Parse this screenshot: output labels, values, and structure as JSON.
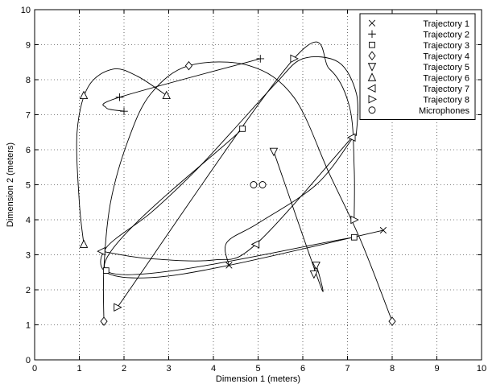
{
  "chart_data": {
    "type": "scatter",
    "xlabel": "Dimension 1 (meters)",
    "ylabel": "Dimension 2 (meters)",
    "xlim": [
      0,
      10
    ],
    "ylim": [
      0,
      10
    ],
    "xticks": [
      "0",
      "1",
      "2",
      "3",
      "4",
      "5",
      "6",
      "7",
      "8",
      "9",
      "10"
    ],
    "yticks": [
      "0",
      "1",
      "2",
      "3",
      "4",
      "5",
      "6",
      "7",
      "8",
      "9",
      "10"
    ],
    "grid": "dotted",
    "legend_position": "top-right",
    "series": [
      {
        "name": "Trajectory 1",
        "marker": "x",
        "points": [
          [
            4.35,
            2.7
          ],
          [
            7.8,
            3.7
          ]
        ],
        "path": [
          [
            7.8,
            3.7
          ],
          [
            4.35,
            2.7
          ],
          [
            2.6,
            2.35
          ],
          [
            1.6,
            2.5
          ],
          [
            1.6,
            3.2
          ],
          [
            2.6,
            4.2
          ],
          [
            3.6,
            5.4
          ],
          [
            4.4,
            6.5
          ],
          [
            5.4,
            7.9
          ],
          [
            6.0,
            8.6
          ],
          [
            6.8,
            8.5
          ],
          [
            7.2,
            7.6
          ],
          [
            7.2,
            6.5
          ],
          [
            7.1,
            6.3
          ],
          [
            6.3,
            5.0
          ],
          [
            5.0,
            3.9
          ],
          [
            4.3,
            3.35
          ],
          [
            4.35,
            2.7
          ]
        ]
      },
      {
        "name": "Trajectory 2",
        "marker": "+",
        "points": [
          [
            2.0,
            7.1
          ],
          [
            1.9,
            7.5
          ],
          [
            5.05,
            8.6
          ]
        ],
        "path": [
          [
            2.0,
            7.1
          ],
          [
            1.6,
            7.2
          ],
          [
            1.9,
            7.5
          ],
          [
            5.05,
            8.6
          ]
        ]
      },
      {
        "name": "Trajectory 3",
        "marker": "square",
        "points": [
          [
            4.65,
            6.6
          ],
          [
            1.6,
            2.55
          ],
          [
            7.15,
            3.5
          ]
        ],
        "path": [
          [
            4.65,
            6.6
          ],
          [
            1.6,
            2.55
          ],
          [
            7.15,
            3.5
          ]
        ]
      },
      {
        "name": "Trajectory 4",
        "marker": "diamond",
        "points": [
          [
            1.55,
            1.1
          ],
          [
            3.45,
            8.4
          ],
          [
            8.0,
            1.1
          ]
        ],
        "path": [
          [
            1.55,
            1.1
          ],
          [
            1.55,
            2.6
          ],
          [
            1.7,
            4.5
          ],
          [
            2.1,
            6.3
          ],
          [
            2.6,
            7.6
          ],
          [
            3.45,
            8.4
          ],
          [
            4.8,
            8.4
          ],
          [
            5.8,
            7.5
          ],
          [
            6.6,
            5.3
          ],
          [
            7.3,
            3.4
          ],
          [
            8.0,
            1.1
          ]
        ]
      },
      {
        "name": "Trajectory 5",
        "marker": "triangle-down",
        "points": [
          [
            5.35,
            5.95
          ],
          [
            6.3,
            2.7
          ],
          [
            6.25,
            2.45
          ]
        ],
        "path": [
          [
            5.35,
            5.95
          ],
          [
            6.4,
            2.1
          ],
          [
            6.3,
            2.7
          ],
          [
            6.25,
            2.45
          ]
        ]
      },
      {
        "name": "Trajectory 6",
        "marker": "triangle-up",
        "points": [
          [
            1.1,
            3.3
          ],
          [
            1.1,
            7.55
          ],
          [
            2.95,
            7.55
          ]
        ],
        "path": [
          [
            1.1,
            3.3
          ],
          [
            1.0,
            4.5
          ],
          [
            0.95,
            6.5
          ],
          [
            1.2,
            7.8
          ],
          [
            1.75,
            8.3
          ],
          [
            2.3,
            8.1
          ],
          [
            2.95,
            7.55
          ]
        ]
      },
      {
        "name": "Trajectory 7",
        "marker": "triangle-left",
        "points": [
          [
            1.5,
            3.1
          ],
          [
            4.95,
            3.3
          ],
          [
            7.1,
            6.35
          ]
        ],
        "path": [
          [
            1.5,
            3.1
          ],
          [
            2.5,
            2.9
          ],
          [
            4.0,
            2.85
          ],
          [
            4.95,
            3.3
          ],
          [
            7.1,
            6.35
          ]
        ]
      },
      {
        "name": "Trajectory 8",
        "marker": "triangle-right",
        "points": [
          [
            1.85,
            1.5
          ],
          [
            5.8,
            8.6
          ],
          [
            7.15,
            4.0
          ]
        ],
        "path": [
          [
            1.85,
            1.5
          ],
          [
            5.8,
            8.6
          ],
          [
            6.6,
            8.3
          ],
          [
            7.05,
            7.2
          ],
          [
            7.15,
            5.5
          ],
          [
            7.15,
            4.0
          ]
        ]
      },
      {
        "name": "Microphones",
        "marker": "circle",
        "points": [
          [
            4.9,
            5.0
          ],
          [
            5.1,
            5.0
          ]
        ],
        "path": []
      }
    ]
  }
}
